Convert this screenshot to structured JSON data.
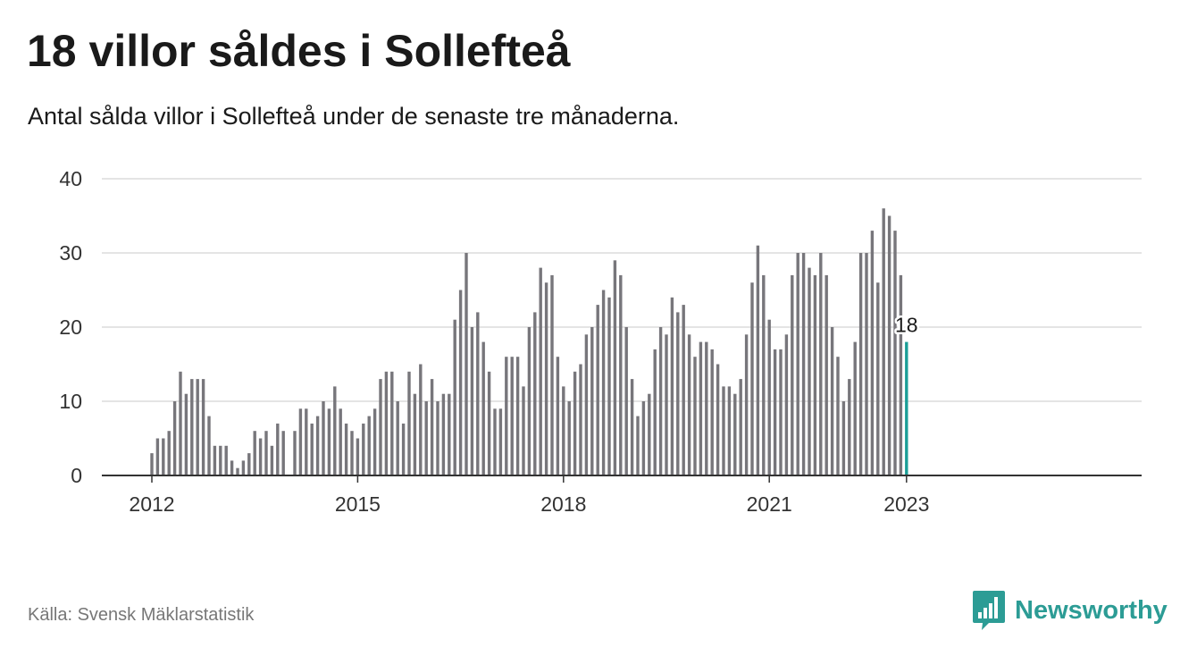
{
  "header": {
    "title": "18 villor såldes i Sollefteå",
    "subtitle": "Antal sålda villor i Sollefteå under de senaste tre månaderna."
  },
  "footer": {
    "source": "Källa: Svensk Mäklarstatistik",
    "brand": "Newsworthy",
    "brand_icon": "bar-chart-speech-bubble-icon"
  },
  "colors": {
    "bar": "#77767b",
    "highlight": "#1a9e97",
    "brand": "#2c9c95",
    "grid": "#dcdcdc",
    "axis": "#333333",
    "text": "#1a1a1a"
  },
  "chart_data": {
    "type": "bar",
    "title": "18 villor såldes i Sollefteå",
    "subtitle": "Antal sålda villor i Sollefteå under de senaste tre månaderna.",
    "xlabel": "",
    "ylabel": "",
    "x_start": "2012-01",
    "x_unit": "month",
    "x_ticks": [
      "2012",
      "2015",
      "2018",
      "2021",
      "2023"
    ],
    "ylim": [
      0,
      40
    ],
    "y_ticks": [
      0,
      10,
      20,
      30,
      40
    ],
    "grid": true,
    "legend": "none",
    "values": [
      3,
      5,
      5,
      6,
      10,
      14,
      11,
      13,
      13,
      13,
      8,
      4,
      4,
      4,
      2,
      1,
      2,
      3,
      6,
      5,
      6,
      4,
      7,
      6,
      null,
      6,
      9,
      9,
      7,
      8,
      10,
      9,
      12,
      9,
      7,
      6,
      5,
      7,
      8,
      9,
      13,
      14,
      14,
      10,
      7,
      14,
      11,
      15,
      10,
      13,
      10,
      11,
      11,
      21,
      25,
      30,
      20,
      22,
      18,
      14,
      9,
      9,
      16,
      16,
      16,
      12,
      20,
      22,
      28,
      26,
      27,
      16,
      12,
      10,
      14,
      15,
      19,
      20,
      23,
      25,
      24,
      29,
      27,
      20,
      13,
      8,
      10,
      11,
      17,
      20,
      19,
      24,
      22,
      23,
      19,
      16,
      18,
      18,
      17,
      15,
      12,
      12,
      11,
      13,
      19,
      26,
      31,
      27,
      21,
      17,
      17,
      19,
      27,
      30,
      30,
      28,
      27,
      30,
      27,
      20,
      16,
      10,
      13,
      18,
      30,
      30,
      33,
      26,
      36,
      35,
      33,
      27,
      18
    ],
    "highlight_last": true,
    "data_labels": [
      {
        "label": "18",
        "value": 18
      }
    ]
  }
}
